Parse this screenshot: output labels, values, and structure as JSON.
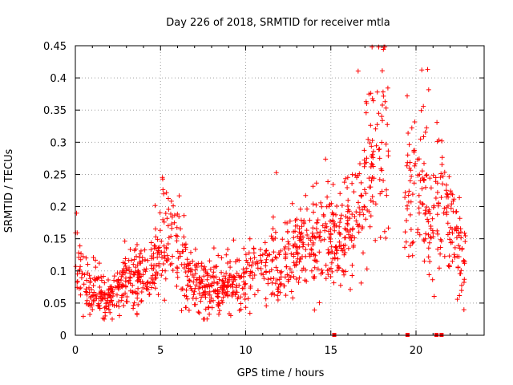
{
  "chart_data": {
    "type": "scatter",
    "title": "Day 226 of 2018, SRMTID for receiver mtla",
    "xlabel": "GPS time / hours",
    "ylabel": "SRMTID / TECUs",
    "xlim": [
      0,
      24
    ],
    "ylim": [
      0,
      0.45
    ],
    "grid": true,
    "marker": "+",
    "color": "#ff0000",
    "x_ticks": [
      "0",
      "5",
      "10",
      "15",
      "20"
    ],
    "x_tick_values": [
      0,
      5,
      10,
      15,
      20
    ],
    "y_ticks": [
      "0",
      "0.05",
      "0.1",
      "0.15",
      "0.2",
      "0.25",
      "0.3",
      "0.35",
      "0.4",
      "0.45"
    ],
    "y_tick_values": [
      0,
      0.05,
      0.1,
      0.15,
      0.2,
      0.25,
      0.3,
      0.35,
      0.4,
      0.45
    ],
    "trend_profile": [
      [
        0.0,
        0.12
      ],
      [
        0.3,
        0.1
      ],
      [
        0.8,
        0.075
      ],
      [
        1.5,
        0.06
      ],
      [
        2.0,
        0.055
      ],
      [
        2.5,
        0.07
      ],
      [
        3.0,
        0.085
      ],
      [
        3.5,
        0.09
      ],
      [
        4.0,
        0.085
      ],
      [
        4.5,
        0.11
      ],
      [
        5.0,
        0.15
      ],
      [
        5.5,
        0.16
      ],
      [
        6.0,
        0.15
      ],
      [
        6.5,
        0.1
      ],
      [
        7.0,
        0.08
      ],
      [
        7.5,
        0.075
      ],
      [
        8.0,
        0.07
      ],
      [
        8.5,
        0.07
      ],
      [
        9.0,
        0.08
      ],
      [
        9.5,
        0.085
      ],
      [
        10.0,
        0.09
      ],
      [
        10.5,
        0.1
      ],
      [
        11.0,
        0.11
      ],
      [
        11.5,
        0.11
      ],
      [
        12.0,
        0.115
      ],
      [
        12.5,
        0.12
      ],
      [
        13.0,
        0.125
      ],
      [
        13.5,
        0.13
      ],
      [
        14.0,
        0.14
      ],
      [
        14.5,
        0.15
      ],
      [
        15.0,
        0.15
      ],
      [
        15.5,
        0.15
      ],
      [
        16.0,
        0.16
      ],
      [
        16.5,
        0.18
      ],
      [
        17.0,
        0.22
      ],
      [
        17.5,
        0.28
      ],
      [
        18.0,
        0.32
      ],
      [
        18.3,
        0.3
      ],
      [
        19.3,
        0.2
      ],
      [
        19.7,
        0.22
      ],
      [
        20.0,
        0.24
      ],
      [
        20.5,
        0.22
      ],
      [
        21.0,
        0.2
      ],
      [
        21.5,
        0.22
      ],
      [
        22.0,
        0.18
      ],
      [
        22.5,
        0.13
      ],
      [
        22.9,
        0.12
      ]
    ],
    "gaps_hours": [
      [
        18.4,
        19.3
      ]
    ],
    "point_count": 1400,
    "zero_markers_x": [
      15.2,
      19.5,
      21.2,
      21.5
    ]
  }
}
